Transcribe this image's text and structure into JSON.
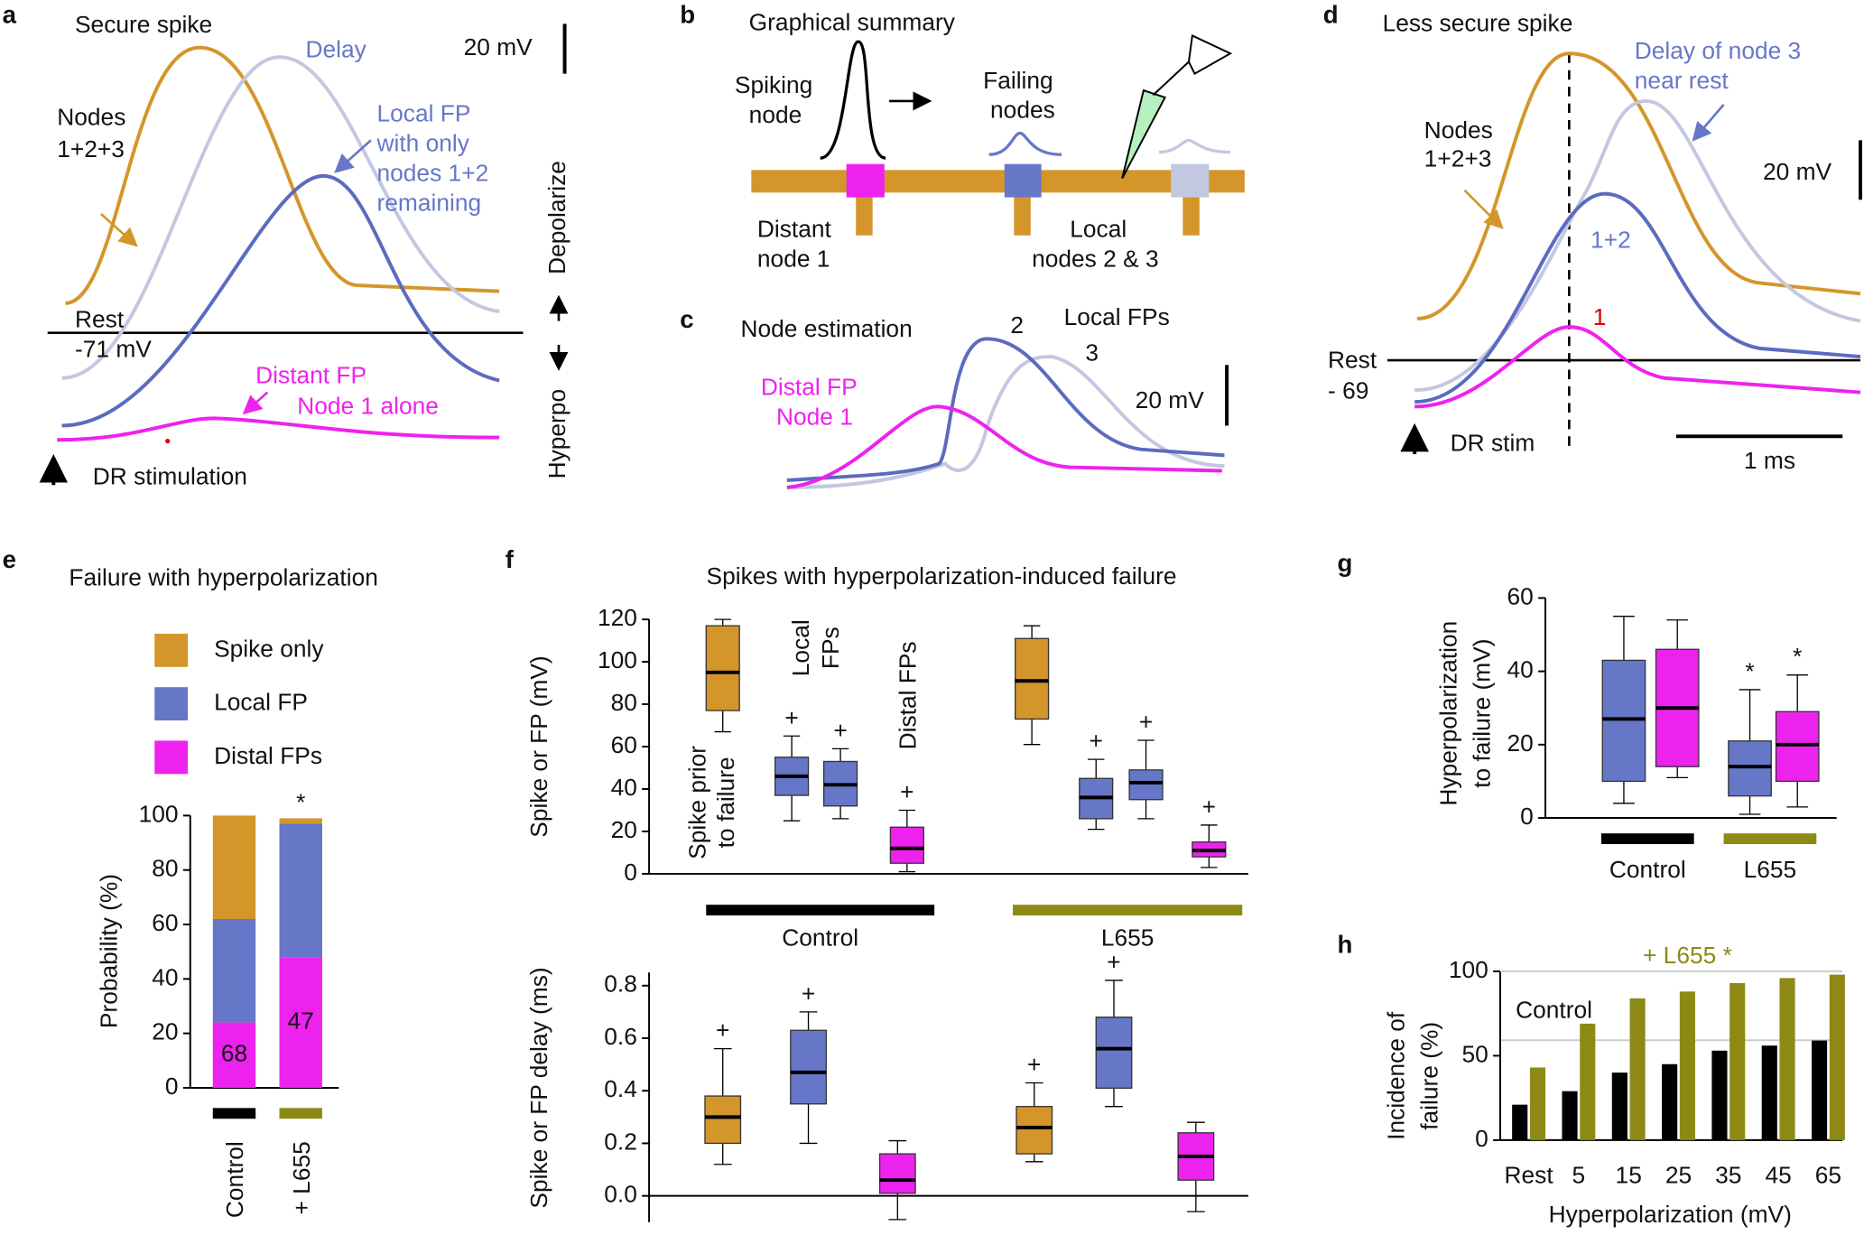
{
  "labels": [
    "a",
    "b",
    "c",
    "d",
    "e",
    "f",
    "g",
    "h"
  ],
  "panels": {
    "a": [
      "Secure spike",
      "Delay",
      "20 mV",
      "Nodes",
      "1+2+3",
      "Local FP",
      "with only",
      "nodes 1+2",
      "remaining",
      "Depolarize",
      "Rest",
      "-71 mV",
      "Distant FP",
      "Node 1 alone",
      "Hyperpo",
      "DR stimulation"
    ],
    "b": [
      "Graphical summary",
      "Spiking",
      "node",
      "Failing",
      "nodes",
      "Distant",
      "node 1",
      "Local",
      "nodes 2 & 3"
    ],
    "c": [
      "Node estimation",
      "2",
      "Local FPs",
      "3",
      "20 mV",
      "Distal FP",
      "Node 1"
    ],
    "d": [
      "Less secure spike",
      "Delay of node 3",
      "near rest",
      "Nodes",
      "1+2+3",
      "20 mV",
      "1+2",
      "1",
      "Rest",
      "- 69",
      "DR stim",
      "1 ms"
    ]
  },
  "chart_data": [
    {
      "type": "stacked_bar",
      "title": "Failure with hyperpolarization",
      "ylabel": "Probability (%)",
      "categories": [
        "Control",
        "+ L655"
      ],
      "category_colors": [
        "#000000",
        "#8c8a14"
      ],
      "series": [
        {
          "name": "Distal FPs",
          "color": "#ee22ee",
          "values": [
            24,
            48
          ]
        },
        {
          "name": "Local FP",
          "color": "#6677c8",
          "values": [
            38,
            49
          ]
        },
        {
          "name": "Spike only",
          "color": "#d4962a",
          "values": [
            38,
            2
          ]
        }
      ],
      "bar_annotations": [
        "68",
        "47"
      ],
      "significance": [
        null,
        "*"
      ],
      "ylim": [
        0,
        100
      ],
      "yticks": [
        0,
        20,
        40,
        60,
        80,
        100
      ]
    },
    {
      "type": "box",
      "title": "Spikes with hyperpolarization-induced failure",
      "ylabel": "Spike or FP (mV)",
      "annotations": [
        "Local",
        "FPs",
        "Distal FPs",
        "Spike prior",
        "to failure"
      ],
      "groups": [
        "Control",
        "L655"
      ],
      "group_colors": [
        "#000000",
        "#8c8a14"
      ],
      "boxes": [
        {
          "color": "#d4962a",
          "min": 67,
          "q1": 77,
          "median": 95,
          "q3": 117,
          "max": 120
        },
        {
          "color": "#6677c8",
          "min": 25,
          "q1": 37,
          "median": 46,
          "q3": 55,
          "max": 65,
          "annotation": "+"
        },
        {
          "color": "#6677c8",
          "min": 26,
          "q1": 32,
          "median": 42,
          "q3": 53,
          "max": 59,
          "annotation": "+"
        },
        {
          "color": "#ee22ee",
          "min": 1,
          "q1": 5,
          "median": 12,
          "q3": 22,
          "max": 30,
          "annotation": "+"
        },
        {
          "color": "#d4962a",
          "min": 61,
          "q1": 73,
          "median": 91,
          "q3": 111,
          "max": 117
        },
        {
          "color": "#6677c8",
          "min": 21,
          "q1": 26,
          "median": 36,
          "q3": 45,
          "max": 54,
          "annotation": "+"
        },
        {
          "color": "#6677c8",
          "min": 26,
          "q1": 35,
          "median": 43,
          "q3": 49,
          "max": 63,
          "annotation": "+"
        },
        {
          "color": "#ee22ee",
          "min": 3,
          "q1": 8,
          "median": 11,
          "q3": 15,
          "max": 23,
          "annotation": "+"
        }
      ],
      "ylim": [
        0,
        120
      ],
      "yticks": [
        0,
        20,
        40,
        60,
        80,
        100,
        120
      ]
    },
    {
      "type": "box",
      "ylabel": "Spike or FP delay (ms)",
      "boxes": [
        {
          "color": "#d4962a",
          "min": 0.12,
          "q1": 0.2,
          "median": 0.3,
          "q3": 0.38,
          "max": 0.56,
          "annotation": "+"
        },
        {
          "color": "#6677c8",
          "min": 0.2,
          "q1": 0.35,
          "median": 0.47,
          "q3": 0.63,
          "max": 0.7,
          "annotation": "+"
        },
        {
          "color": "#ee22ee",
          "min": -0.09,
          "q1": 0.01,
          "median": 0.06,
          "q3": 0.16,
          "max": 0.21
        },
        {
          "color": "#d4962a",
          "min": 0.13,
          "q1": 0.16,
          "median": 0.26,
          "q3": 0.34,
          "max": 0.43,
          "annotation": "+"
        },
        {
          "color": "#6677c8",
          "min": 0.34,
          "q1": 0.41,
          "median": 0.56,
          "q3": 0.68,
          "max": 0.82,
          "annotation": "+"
        },
        {
          "color": "#ee22ee",
          "min": -0.06,
          "q1": 0.06,
          "median": 0.15,
          "q3": 0.24,
          "max": 0.28
        }
      ],
      "ylim": [
        -0.1,
        0.85
      ],
      "yticks": [
        {
          "value": 0,
          "label": "0.0"
        },
        0.2,
        0.4,
        0.6,
        0.8
      ]
    },
    {
      "type": "box",
      "ylabel": [
        "Hyperpolarization",
        "to failure (mV)"
      ],
      "groups": [
        "Control",
        "L655"
      ],
      "group_colors": [
        "#000000",
        "#8c8a14"
      ],
      "boxes": [
        {
          "color": "#6677c8",
          "min": 4,
          "q1": 10,
          "median": 27,
          "q3": 43,
          "max": 55
        },
        {
          "color": "#ee22ee",
          "min": 11,
          "q1": 14,
          "median": 30,
          "q3": 46,
          "max": 54
        },
        {
          "color": "#6677c8",
          "min": 1,
          "q1": 6,
          "median": 14,
          "q3": 21,
          "max": 35,
          "annotation": "*"
        },
        {
          "color": "#ee22ee",
          "min": 3,
          "q1": 10,
          "median": 20,
          "q3": 29,
          "max": 39,
          "annotation": "*"
        }
      ],
      "ylim": [
        0,
        60
      ],
      "yticks": [
        0,
        20,
        40,
        60
      ]
    },
    {
      "type": "bar",
      "xlabel": "Hyperpolarization (mV)",
      "ylabel": [
        "Incidence of",
        "failure (%)"
      ],
      "categories": [
        "Rest",
        "5",
        "15",
        "25",
        "35",
        "45",
        "65"
      ],
      "series": [
        {
          "name": "Control",
          "color": "#000000",
          "values": [
            21,
            29,
            40,
            45,
            53,
            56,
            59
          ]
        },
        {
          "name": "+ L655 *",
          "color": "#8c8a14",
          "values": [
            43,
            69,
            84,
            88,
            93,
            96,
            98
          ]
        }
      ],
      "ylim": [
        0,
        100
      ],
      "yticks": [
        0,
        50,
        100
      ]
    }
  ]
}
